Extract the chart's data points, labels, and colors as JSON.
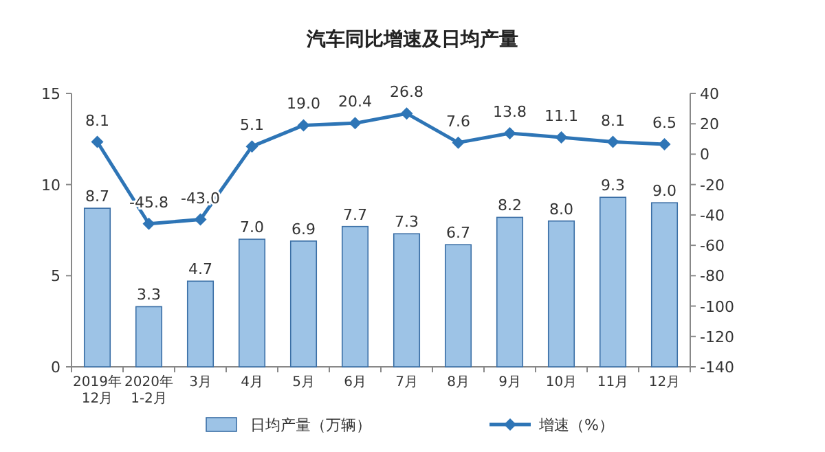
{
  "chart_data": {
    "type": "bar",
    "title": "汽车同比增速及日均产量",
    "categories": [
      "2019年\n12月",
      "2020年\n1-2月",
      "3月",
      "4月",
      "5月",
      "6月",
      "7月",
      "8月",
      "9月",
      "10月",
      "11月",
      "12月"
    ],
    "series": [
      {
        "name": "日均产量（万辆）",
        "color": "#9dc3e6",
        "values": [
          8.7,
          3.3,
          4.7,
          7.0,
          6.9,
          7.7,
          7.3,
          6.7,
          8.2,
          8.0,
          9.3,
          9.0
        ],
        "value_labels": [
          "8.7",
          "3.3",
          "4.7",
          "7.0",
          "6.9",
          "7.7",
          "7.3",
          "6.7",
          "8.2",
          "8.0",
          "9.3",
          "9.0"
        ]
      },
      {
        "name": "增速（%）",
        "type": "line",
        "axis": "y2",
        "color": "#2e75b6",
        "marker": "diamond",
        "values": [
          8.1,
          -45.8,
          -43.0,
          5.1,
          19.0,
          20.4,
          26.8,
          7.6,
          13.8,
          11.1,
          8.1,
          6.5
        ],
        "value_labels": [
          "8.1",
          "-45.8",
          "-43.0",
          "5.1",
          "19.0",
          "20.4",
          "26.8",
          "7.6",
          "13.8",
          "11.1",
          "8.1",
          "6.5"
        ]
      }
    ],
    "ylim": [
      0,
      15
    ],
    "yticks": [
      0,
      5,
      10,
      15
    ],
    "y2lim": [
      -140,
      40
    ],
    "y2ticks": [
      -140,
      -120,
      -100,
      -80,
      -60,
      -40,
      -20,
      0,
      20,
      40
    ],
    "grid": false,
    "legend": "bottom"
  }
}
